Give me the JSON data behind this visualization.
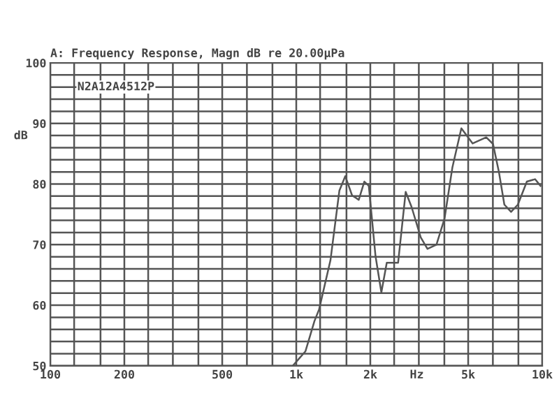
{
  "chart_data": {
    "type": "line",
    "title": "A: Frequency Response, Magn dB re 20.00μPa",
    "ylabel": "dB",
    "xlabel": "Hz",
    "annotations": [
      "N2A12A4512P"
    ],
    "x": [
      968,
      1090,
      1186,
      1238,
      1377,
      1497,
      1582,
      1687,
      1795,
      1891,
      1972,
      2100,
      2218,
      2333,
      2594,
      2785,
      2944,
      3206,
      3415,
      3715,
      4007,
      4311,
      4690,
      5214,
      5920,
      6310,
      6666,
      7015,
      7470,
      7960,
      8660,
      9350,
      9840
    ],
    "series": [
      {
        "color": "#555555",
        "values": [
          50,
          52.4,
          57.4,
          59.3,
          67.4,
          78.9,
          81.3,
          78.1,
          77.4,
          80.4,
          79.7,
          68.1,
          62.1,
          67,
          67,
          78.7,
          76.2,
          71.2,
          69.3,
          70,
          74.3,
          82.7,
          89.2,
          86.7,
          87.7,
          86.6,
          82,
          76.6,
          75.4,
          76.6,
          80.4,
          80.8,
          79.7
        ]
      }
    ],
    "log": "x",
    "xlim": [
      100,
      10000
    ],
    "ylim": [
      50,
      100
    ],
    "xticks": [
      100,
      {
        "value": 125,
        "label": null
      },
      {
        "value": 160,
        "label": null
      },
      200,
      {
        "value": 250,
        "label": null
      },
      {
        "value": 315,
        "label": null
      },
      {
        "value": 400,
        "label": null
      },
      500,
      {
        "value": 630,
        "label": null
      },
      {
        "value": 800,
        "label": null
      },
      {
        "value": 1000,
        "label": "1k"
      },
      {
        "value": 1250,
        "label": null
      },
      {
        "value": 1600,
        "label": null
      },
      {
        "value": 2000,
        "label": "2k"
      },
      {
        "value": 2500,
        "label": null
      },
      {
        "value": 3150,
        "label": null
      },
      {
        "value": 4000,
        "label": null
      },
      {
        "value": 5000,
        "label": "5k"
      },
      {
        "value": 6300,
        "label": null
      },
      {
        "value": 8000,
        "label": null
      },
      {
        "value": 10000,
        "label": "10k"
      }
    ],
    "yticks": [
      50,
      {
        "value": 52,
        "label": null
      },
      {
        "value": 54,
        "label": null
      },
      {
        "value": 56,
        "label": null
      },
      {
        "value": 58,
        "label": null
      },
      60,
      {
        "value": 62,
        "label": null
      },
      {
        "value": 64,
        "label": null
      },
      {
        "value": 66,
        "label": null
      },
      {
        "value": 68,
        "label": null
      },
      70,
      {
        "value": 72,
        "label": null
      },
      {
        "value": 74,
        "label": null
      },
      {
        "value": 76,
        "label": null
      },
      {
        "value": 78,
        "label": null
      },
      80,
      {
        "value": 82,
        "label": null
      },
      {
        "value": 84,
        "label": null
      },
      {
        "value": 86,
        "label": null
      },
      {
        "value": 88,
        "label": null
      },
      90,
      {
        "value": 92,
        "label": null
      },
      {
        "value": 94,
        "label": null
      },
      {
        "value": 96,
        "label": null
      },
      {
        "value": 98,
        "label": null
      },
      100
    ],
    "grid": true,
    "marker": "none",
    "line_style": "solid"
  }
}
